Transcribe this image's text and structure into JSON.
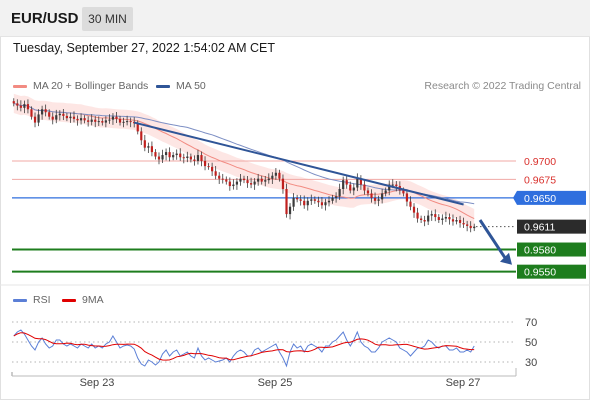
{
  "header": {
    "symbol": "EUR/USD",
    "timeframe": "30 MIN"
  },
  "timestamp": "Tuesday, September 27, 2022 1:54:02 AM CET",
  "legend": {
    "bollinger": {
      "label": "MA 20 + Bollinger Bands",
      "color": "#f28b82"
    },
    "ma50": {
      "label": "MA 50",
      "color": "#2f5597"
    },
    "credit": "Research © 2022 Trading Central"
  },
  "rsi_legend": {
    "rsi": {
      "label": "RSI",
      "color": "#5b7fd6"
    },
    "ma9": {
      "label": "9MA",
      "color": "#e00000"
    }
  },
  "chart_data": [
    {
      "type": "candlestick",
      "xlabel": "",
      "ylabel": "",
      "x_ticks": [
        "Sep 23",
        "Sep 25",
        "Sep 27"
      ],
      "ylim": [
        0.9536,
        0.9788
      ],
      "levels": [
        {
          "label": "0.9700",
          "value": 0.97,
          "kind": "resistance",
          "color": "#d9302c"
        },
        {
          "label": "0.9675",
          "value": 0.9675,
          "kind": "resistance",
          "color": "#d9302c"
        },
        {
          "label": "0.9650",
          "value": 0.965,
          "kind": "pivot",
          "color": "#2f6fde"
        },
        {
          "label": "0.9611",
          "value": 0.9611,
          "kind": "last",
          "color": "#2b2b2b"
        },
        {
          "label": "0.9580",
          "value": 0.958,
          "kind": "support",
          "color": "#1e7d1e"
        },
        {
          "label": "0.9550",
          "value": 0.955,
          "kind": "support",
          "color": "#1e7d1e"
        }
      ],
      "close": [
        0.9778,
        0.9775,
        0.9772,
        0.9777,
        0.977,
        0.976,
        0.9752,
        0.9763,
        0.977,
        0.9766,
        0.976,
        0.9756,
        0.9762,
        0.9764,
        0.9761,
        0.9758,
        0.976,
        0.9757,
        0.9755,
        0.9758,
        0.9755,
        0.9753,
        0.9756,
        0.9753,
        0.9754,
        0.9752,
        0.9755,
        0.9756,
        0.976,
        0.9757,
        0.9752,
        0.9753,
        0.9754,
        0.9753,
        0.9751,
        0.974,
        0.9728,
        0.9718,
        0.972,
        0.9712,
        0.9706,
        0.9702,
        0.9708,
        0.9712,
        0.9705,
        0.9708,
        0.971,
        0.9705,
        0.9704,
        0.9706,
        0.9702,
        0.97,
        0.9708,
        0.97,
        0.9693,
        0.9692,
        0.9686,
        0.968,
        0.9676,
        0.9675,
        0.9672,
        0.9666,
        0.9668,
        0.9672,
        0.9676,
        0.9674,
        0.967,
        0.9668,
        0.9672,
        0.9676,
        0.9672,
        0.9674,
        0.9676,
        0.968,
        0.9684,
        0.9676,
        0.9662,
        0.9628,
        0.9638,
        0.965,
        0.9648,
        0.9646,
        0.964,
        0.9646,
        0.9648,
        0.9646,
        0.9644,
        0.964,
        0.9644,
        0.9646,
        0.965,
        0.9652,
        0.9662,
        0.9674,
        0.9668,
        0.966,
        0.9664,
        0.9676,
        0.9668,
        0.966,
        0.9656,
        0.965,
        0.9646,
        0.9648,
        0.9656,
        0.966,
        0.9668,
        0.9668,
        0.9666,
        0.966,
        0.9656,
        0.9645,
        0.9638,
        0.963,
        0.9622,
        0.962,
        0.9618,
        0.9626,
        0.9628,
        0.9624,
        0.962,
        0.9622,
        0.9624,
        0.9621,
        0.9618,
        0.962,
        0.9616,
        0.9614,
        0.9612,
        0.9609,
        0.9611
      ],
      "overlays": [
        {
          "name": "MA 20",
          "color": "#f28b82",
          "band_width": 0.0013
        },
        {
          "name": "MA 50",
          "color": "#2f5597"
        }
      ],
      "trendline": {
        "from_index": 34,
        "from_value": 0.9752,
        "to_index": 127,
        "to_value": 0.9641,
        "color": "#2f5597"
      },
      "projection": {
        "from_value": 0.962,
        "to_value": 0.9562,
        "color": "#2f5597"
      }
    },
    {
      "type": "line",
      "name": "RSI panel",
      "ylim": [
        20,
        80
      ],
      "y_ticks": [
        30,
        50,
        70
      ],
      "series": [
        {
          "name": "RSI",
          "color": "#5b7fd6"
        },
        {
          "name": "9MA",
          "color": "#e00000"
        }
      ],
      "rsi": [
        56,
        60,
        62,
        58,
        52,
        46,
        42,
        50,
        54,
        48,
        44,
        46,
        52,
        52,
        48,
        46,
        48,
        46,
        44,
        48,
        46,
        44,
        48,
        44,
        46,
        44,
        48,
        50,
        56,
        50,
        44,
        46,
        47,
        46,
        43,
        34,
        28,
        26,
        32,
        30,
        27,
        30,
        38,
        42,
        36,
        40,
        42,
        36,
        38,
        40,
        36,
        34,
        44,
        36,
        32,
        34,
        32,
        30,
        31,
        32,
        34,
        30,
        36,
        40,
        42,
        40,
        36,
        36,
        42,
        44,
        40,
        42,
        44,
        46,
        48,
        40,
        34,
        26,
        40,
        48,
        44,
        46,
        40,
        46,
        48,
        46,
        44,
        40,
        46,
        46,
        50,
        52,
        56,
        60,
        52,
        46,
        52,
        60,
        50,
        46,
        44,
        40,
        40,
        44,
        50,
        52,
        54,
        52,
        50,
        44,
        42,
        40,
        36,
        40,
        44,
        44,
        46,
        52,
        50,
        46,
        44,
        46,
        46,
        42,
        42,
        44,
        40,
        40,
        42,
        40,
        46
      ]
    }
  ]
}
